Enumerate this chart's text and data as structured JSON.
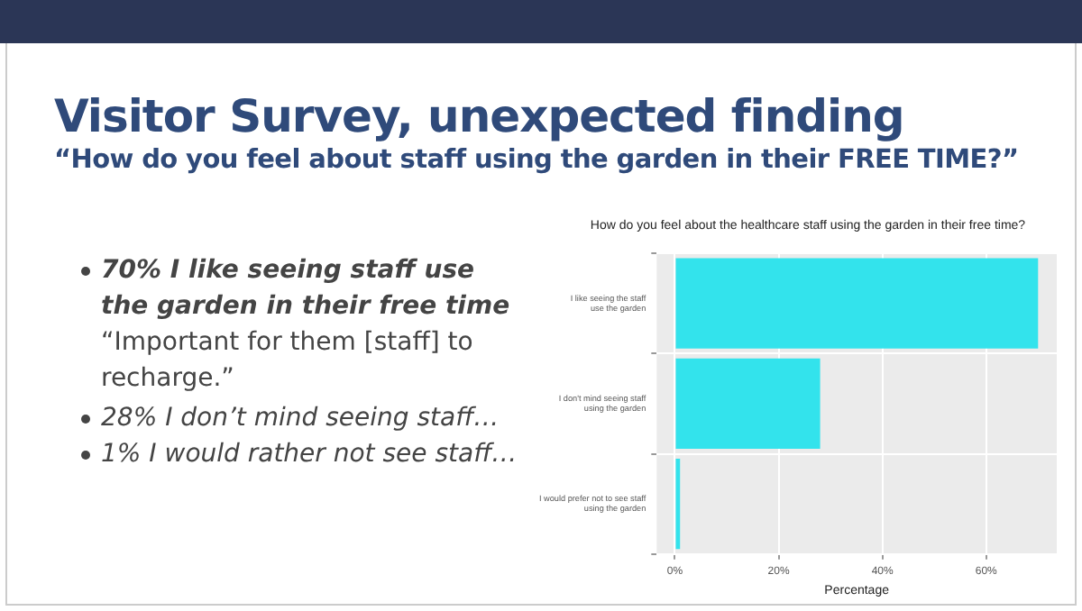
{
  "chart_data": {
    "type": "bar",
    "orientation": "horizontal",
    "title": "Visitor Survey, unexpected finding",
    "subtitle": "“How do you feel about staff using the garden in their FREE TIME?”",
    "annotations": [
      "How do you feel about the healthcare staff using the garden in their free time?",
      "70% I like seeing staff use the garden in their free time",
      "“Important for them [staff] to recharge.”",
      "28% I don’t mind seeing staff…",
      "1% I would rather not see staff…"
    ],
    "categories": [
      "I like seeing the staff\nuse the garden",
      "I don't mind seeing staff\nusing the garden",
      "I would prefer not to see staff\nusing the garden"
    ],
    "values": [
      70,
      28,
      1
    ],
    "color": "#33e3ec",
    "xlabel": "Percentage",
    "xlim": [
      -3.5,
      73.6
    ],
    "xticks": [
      {
        "value": 0,
        "label": "0%"
      },
      {
        "value": 20,
        "label": "20%"
      },
      {
        "value": 40,
        "label": "40%"
      },
      {
        "value": 60,
        "label": "60%"
      }
    ],
    "grid": true
  }
}
